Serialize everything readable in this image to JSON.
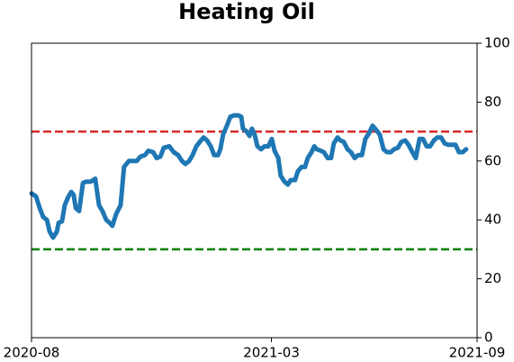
{
  "chart_data": {
    "type": "line",
    "title": "Heating Oil",
    "x": [
      0,
      0.13,
      0.24,
      0.34,
      0.45,
      0.53,
      0.63,
      0.74,
      0.79,
      0.89,
      0.97,
      1.08,
      1.16,
      1.23,
      1.29,
      1.39,
      1.5,
      1.6,
      1.73,
      1.86,
      1.97,
      2.07,
      2.18,
      2.28,
      2.36,
      2.47,
      2.6,
      2.7,
      2.84,
      2.97,
      3.07,
      3.18,
      3.31,
      3.41,
      3.55,
      3.65,
      3.76,
      3.86,
      4.02,
      4.15,
      4.28,
      4.39,
      4.49,
      4.6,
      4.7,
      4.81,
      4.91,
      5.02,
      5.12,
      5.23,
      5.33,
      5.44,
      5.51,
      5.59,
      5.7,
      5.8,
      5.91,
      6.04,
      6.12,
      6.17,
      6.28,
      6.36,
      6.43,
      6.51,
      6.59,
      6.7,
      6.8,
      6.91,
      7.01,
      7.09,
      7.2,
      7.27,
      7.38,
      7.48,
      7.56,
      7.69,
      7.77,
      7.88,
      7.98,
      8.06,
      8.17,
      8.25,
      8.32,
      8.43,
      8.53,
      8.64,
      8.74,
      8.82,
      8.93,
      9.01,
      9.11,
      9.22,
      9.32,
      9.43,
      9.53,
      9.64,
      9.74,
      9.85,
      9.95,
      10.06,
      10.16,
      10.27,
      10.37,
      10.48,
      10.58,
      10.69,
      10.79,
      10.9,
      11,
      11.11,
      11.21,
      11.32,
      11.42,
      11.53,
      11.63,
      11.74,
      11.84,
      11.95,
      12.05,
      12.16,
      12.26,
      12.37,
      12.47,
      12.58,
      12.68
    ],
    "series": [
      {
        "color": "#1f77b4",
        "values": [
          49,
          48,
          44,
          41,
          40,
          36,
          34,
          36,
          39,
          39.5,
          45,
          48,
          49.5,
          48.5,
          44,
          43,
          52.5,
          53,
          53,
          54,
          45,
          43,
          40,
          39,
          38,
          42,
          45,
          58,
          60,
          60,
          60,
          61.5,
          62,
          63.5,
          63,
          61,
          61.5,
          64.5,
          65,
          63,
          62,
          60,
          59,
          60,
          62,
          65,
          66.5,
          68,
          67,
          65,
          62,
          62,
          64,
          69,
          72,
          75,
          75.5,
          75.5,
          75,
          71,
          70,
          68.5,
          71,
          69,
          65,
          64,
          65,
          65,
          67.5,
          63.5,
          61,
          55,
          53,
          52,
          53.5,
          53.5,
          56.5,
          58,
          58,
          61,
          63,
          65,
          64,
          63.5,
          63,
          61,
          61,
          66,
          68,
          67,
          66.5,
          64,
          63,
          61,
          62,
          62,
          67.5,
          69.5,
          72,
          70.5,
          69,
          64,
          63,
          63,
          64,
          64.5,
          66.5,
          67,
          65.5,
          63,
          61,
          67.5,
          67.5,
          65,
          65,
          67,
          68,
          68,
          66,
          65.5,
          65.5,
          65.5,
          63,
          63,
          64
        ]
      }
    ],
    "xlim": [
      0,
      13
    ],
    "xticks": [
      {
        "value": 0,
        "label": "2020-08"
      },
      {
        "value": 7,
        "label": "2021-03"
      },
      {
        "value": 13,
        "label": "2021-09"
      }
    ],
    "ylim": [
      0,
      100
    ],
    "yticks": [
      0,
      20,
      40,
      60,
      80,
      100
    ],
    "hlines": [
      {
        "value": 70,
        "color": "#d62728"
      },
      {
        "value": 30,
        "color": "#008000"
      }
    ]
  }
}
